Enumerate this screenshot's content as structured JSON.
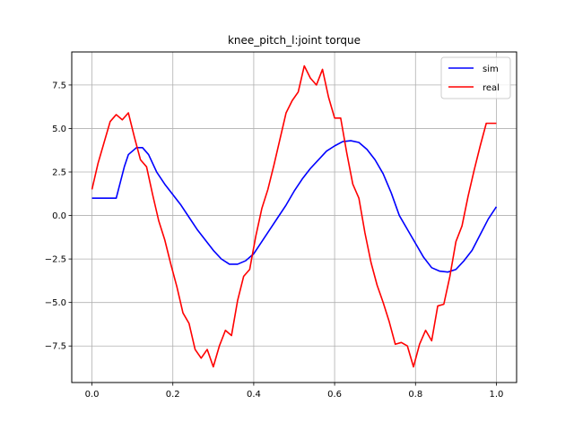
{
  "chart_data": {
    "type": "line",
    "title": "knee_pitch_l:joint torque",
    "xlabel": "",
    "ylabel": "",
    "xlim": [
      -0.05,
      1.05
    ],
    "ylim": [
      -9.6,
      9.4
    ],
    "grid": true,
    "legend_placement": "top-right",
    "x_ticks": [
      0.0,
      0.2,
      0.4,
      0.6,
      0.8,
      1.0
    ],
    "x_tick_labels": [
      "0.0",
      "0.2",
      "0.4",
      "0.6",
      "0.8",
      "1.0"
    ],
    "y_ticks": [
      -7.5,
      -5.0,
      -2.5,
      0.0,
      2.5,
      5.0,
      7.5
    ],
    "y_tick_labels": [
      "−7.5",
      "−5.0",
      "−2.5",
      "0.0",
      "2.5",
      "5.0",
      "7.5"
    ],
    "series": [
      {
        "name": "sim",
        "color": "#0000ff",
        "x": [
          0.0,
          0.02,
          0.04,
          0.06,
          0.08,
          0.09,
          0.11,
          0.125,
          0.14,
          0.16,
          0.18,
          0.2,
          0.22,
          0.24,
          0.26,
          0.28,
          0.3,
          0.32,
          0.34,
          0.36,
          0.38,
          0.4,
          0.42,
          0.44,
          0.46,
          0.48,
          0.5,
          0.52,
          0.54,
          0.56,
          0.58,
          0.6,
          0.62,
          0.64,
          0.66,
          0.68,
          0.7,
          0.72,
          0.74,
          0.76,
          0.78,
          0.8,
          0.82,
          0.84,
          0.86,
          0.88,
          0.9,
          0.92,
          0.94,
          0.96,
          0.98,
          1.0
        ],
        "y": [
          1.0,
          1.0,
          1.0,
          1.0,
          2.8,
          3.5,
          3.9,
          3.9,
          3.5,
          2.5,
          1.8,
          1.2,
          0.6,
          -0.1,
          -0.8,
          -1.4,
          -2.0,
          -2.5,
          -2.8,
          -2.8,
          -2.6,
          -2.2,
          -1.5,
          -0.8,
          -0.1,
          0.6,
          1.4,
          2.1,
          2.7,
          3.2,
          3.7,
          4.0,
          4.25,
          4.3,
          4.2,
          3.8,
          3.2,
          2.4,
          1.3,
          0.0,
          -0.8,
          -1.6,
          -2.4,
          -3.0,
          -3.2,
          -3.25,
          -3.1,
          -2.6,
          -2.0,
          -1.1,
          -0.2,
          0.5
        ]
      },
      {
        "name": "real",
        "color": "#ff0000",
        "x": [
          0.0,
          0.015,
          0.03,
          0.045,
          0.06,
          0.075,
          0.09,
          0.105,
          0.12,
          0.135,
          0.15,
          0.165,
          0.18,
          0.195,
          0.21,
          0.225,
          0.24,
          0.255,
          0.27,
          0.285,
          0.3,
          0.315,
          0.33,
          0.345,
          0.36,
          0.375,
          0.39,
          0.405,
          0.42,
          0.435,
          0.45,
          0.465,
          0.48,
          0.495,
          0.51,
          0.525,
          0.54,
          0.555,
          0.57,
          0.585,
          0.6,
          0.615,
          0.63,
          0.645,
          0.66,
          0.675,
          0.69,
          0.705,
          0.72,
          0.735,
          0.75,
          0.765,
          0.78,
          0.795,
          0.81,
          0.825,
          0.84,
          0.855,
          0.87,
          0.885,
          0.9,
          0.915,
          0.93,
          0.945,
          0.96,
          0.975,
          0.99,
          1.0
        ],
        "y": [
          1.5,
          3.0,
          4.2,
          5.4,
          5.8,
          5.5,
          5.9,
          4.5,
          3.2,
          2.8,
          1.2,
          -0.3,
          -1.4,
          -2.8,
          -4.1,
          -5.6,
          -6.2,
          -7.7,
          -8.2,
          -7.7,
          -8.7,
          -7.5,
          -6.6,
          -6.9,
          -4.9,
          -3.5,
          -3.1,
          -1.2,
          0.4,
          1.5,
          2.9,
          4.4,
          5.9,
          6.6,
          7.1,
          8.6,
          7.9,
          7.5,
          8.4,
          6.8,
          5.6,
          5.6,
          3.6,
          1.8,
          1.0,
          -1.0,
          -2.7,
          -4.0,
          -5.0,
          -6.1,
          -7.4,
          -7.3,
          -7.5,
          -8.7,
          -7.4,
          -6.6,
          -7.2,
          -5.2,
          -5.1,
          -3.5,
          -1.5,
          -0.6,
          1.1,
          2.6,
          4.0,
          5.3,
          5.3,
          5.3
        ]
      }
    ]
  }
}
